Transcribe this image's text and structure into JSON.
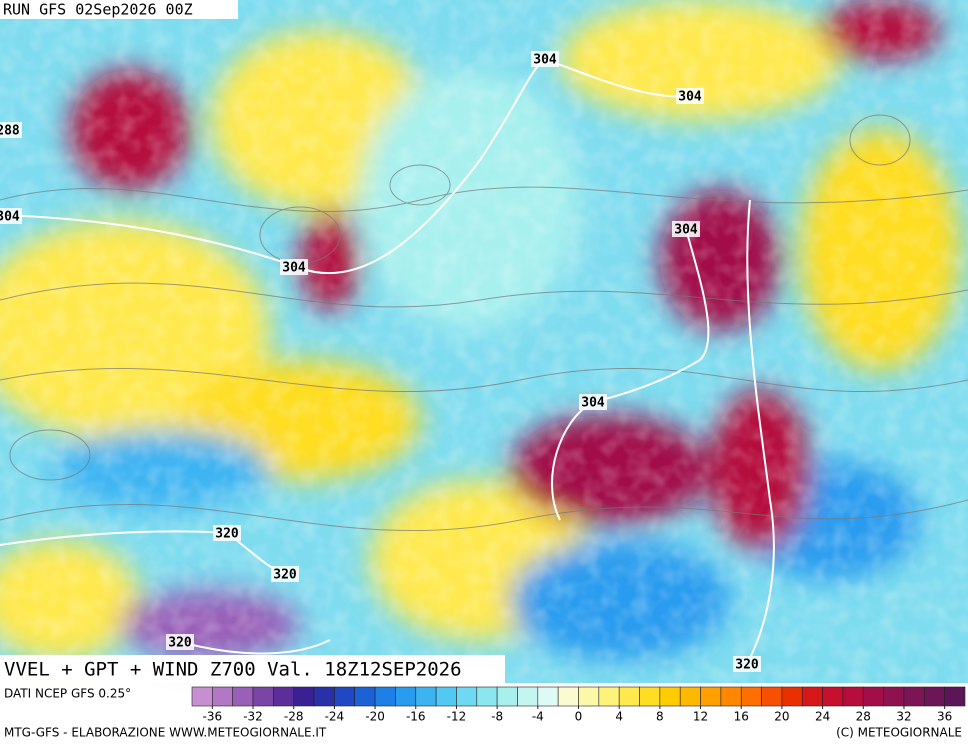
{
  "header": {
    "run": "RUN GFS 02Sep2026 00Z"
  },
  "map": {
    "title": "VVEL + GPT + WIND Z700 Val. 18Z12SEP2026",
    "contour_labels": [
      "304",
      "304",
      "288",
      "304",
      "304",
      "304",
      "304",
      "320",
      "320",
      "320",
      "320"
    ]
  },
  "colorbar": {
    "source": "DATI NCEP GFS 0.25°",
    "ticks": [
      -36,
      -32,
      -28,
      -24,
      -20,
      -16,
      -12,
      -8,
      -4,
      0,
      4,
      8,
      12,
      16,
      20,
      24,
      28,
      32,
      36
    ],
    "colors": [
      "#c58fd0",
      "#b278c6",
      "#9a5fb8",
      "#7b45a6",
      "#5b2e9a",
      "#3a1f95",
      "#2b2fa8",
      "#1f48c2",
      "#1c62d6",
      "#1e7fe6",
      "#2a9cef",
      "#3cb4f2",
      "#52c8f4",
      "#6fd8f3",
      "#8ce6f0",
      "#a8f0ee",
      "#c4f6f0",
      "#ddfaf4",
      "#fbfbd2",
      "#fdf7a8",
      "#fff27a",
      "#ffe94f",
      "#ffdd22",
      "#ffcc00",
      "#ffb800",
      "#ffa000",
      "#ff8800",
      "#ff6e00",
      "#f75000",
      "#ea3000",
      "#d81818",
      "#c8102e",
      "#b50d3c",
      "#a20f48",
      "#8e1250",
      "#7c1455",
      "#6c1557",
      "#5c1557"
    ]
  },
  "footer": {
    "left": "MTG-GFS - ELABORAZIONE WWW.METEOGIORNALE.IT",
    "right": "(C) METEOGIORNALE"
  }
}
